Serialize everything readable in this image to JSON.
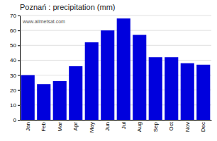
{
  "chart_data": {
    "type": "bar",
    "title": "Poznań : precipitation (mm)",
    "categories": [
      "Jan",
      "Feb",
      "Mar",
      "Apr",
      "May",
      "Jun",
      "Jul",
      "Aug",
      "Sep",
      "Oct",
      "Nov",
      "Dec"
    ],
    "values": [
      30,
      24,
      26,
      36,
      52,
      60,
      68,
      57,
      42,
      42,
      38,
      37
    ],
    "color": "#0000DD",
    "ylim": [
      0,
      70
    ],
    "yticks": [
      0,
      10,
      20,
      30,
      40,
      50,
      60,
      70
    ],
    "grid": true,
    "annotations": [
      "www.allmetsat.com"
    ]
  }
}
